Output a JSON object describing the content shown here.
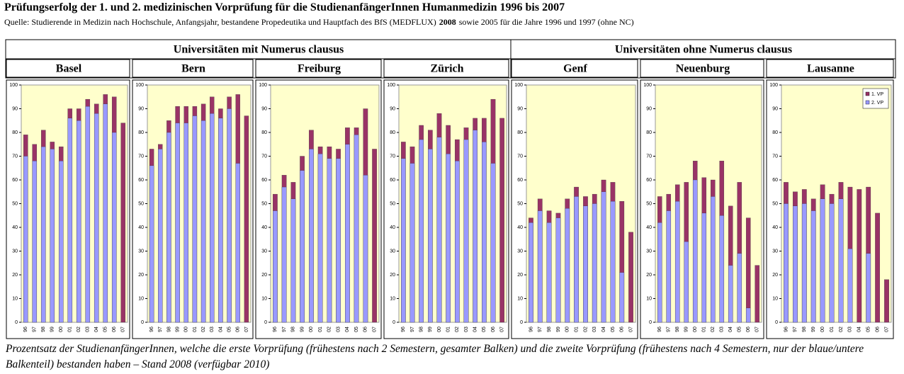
{
  "header": {
    "title": "Prüfungserfolg der 1. und 2. medizinischen Vorprüfung für die StudienanfängerInnen Humanmedizin 1996 bis 2007",
    "source": {
      "before": "Quelle: Studierende in Medizin nach Hochschule, Anfangsjahr, bestandene Propedeutika und Hauptfach des BfS (MEDFLUX)",
      "bold": "2008",
      "after": "sowie 2005 für die Jahre 1996 und 1997 (ohne NC)"
    }
  },
  "table": {
    "groups": [
      "Universitäten mit Numerus clausus",
      "Universitäten ohne Numerus clausus"
    ]
  },
  "chart_data": [
    {
      "type": "bar",
      "title": "Basel",
      "categories": [
        "96",
        "97",
        "98",
        "99",
        "00",
        "01",
        "02",
        "03",
        "04",
        "05",
        "06",
        "07"
      ],
      "series": [
        {
          "color": "#993366",
          "values": [
            79,
            75,
            81,
            76,
            74,
            90,
            90,
            94,
            92,
            96,
            95,
            84
          ]
        },
        {
          "color": "#9999ff",
          "values": [
            70,
            68,
            74,
            73,
            68,
            86,
            85,
            91,
            88,
            92,
            80,
            null
          ]
        }
      ],
      "ylim": [
        0,
        100
      ],
      "yticks": [
        0,
        10,
        20,
        30,
        40,
        50,
        60,
        70,
        80,
        90,
        100
      ],
      "grid": false
    },
    {
      "type": "bar",
      "title": "Bern",
      "categories": [
        "96",
        "97",
        "98",
        "99",
        "00",
        "01",
        "02",
        "03",
        "04",
        "05",
        "06",
        "07"
      ],
      "series": [
        {
          "color": "#993366",
          "values": [
            73,
            75,
            85,
            91,
            91,
            91,
            92,
            95,
            90,
            95,
            96,
            87
          ]
        },
        {
          "color": "#9999ff",
          "values": [
            66,
            73,
            80,
            84,
            84,
            87,
            85,
            88,
            86,
            90,
            67,
            null
          ]
        }
      ],
      "ylim": [
        0,
        100
      ],
      "yticks": [
        0,
        10,
        20,
        30,
        40,
        50,
        60,
        70,
        80,
        90,
        100
      ],
      "grid": false
    },
    {
      "type": "bar",
      "title": "Freiburg",
      "categories": [
        "96",
        "97",
        "98",
        "99",
        "00",
        "01",
        "02",
        "03",
        "04",
        "05",
        "06",
        "07"
      ],
      "series": [
        {
          "color": "#993366",
          "values": [
            54,
            62,
            59,
            70,
            81,
            74,
            74,
            73,
            82,
            82,
            90,
            73
          ]
        },
        {
          "color": "#9999ff",
          "values": [
            47,
            57,
            52,
            64,
            73,
            71,
            69,
            69,
            75,
            79,
            62,
            null
          ]
        }
      ],
      "ylim": [
        0,
        100
      ],
      "yticks": [
        0,
        10,
        20,
        30,
        40,
        50,
        60,
        70,
        80,
        90,
        100
      ],
      "grid": false
    },
    {
      "type": "bar",
      "title": "Zürich",
      "categories": [
        "96",
        "97",
        "98",
        "99",
        "00",
        "01",
        "02",
        "03",
        "04",
        "05",
        "06",
        "07"
      ],
      "series": [
        {
          "color": "#993366",
          "values": [
            76,
            74,
            83,
            81,
            88,
            83,
            77,
            82,
            86,
            86,
            94,
            86
          ]
        },
        {
          "color": "#9999ff",
          "values": [
            69,
            67,
            77,
            73,
            78,
            71,
            68,
            77,
            81,
            76,
            67,
            null
          ]
        }
      ],
      "ylim": [
        0,
        100
      ],
      "yticks": [
        0,
        10,
        20,
        30,
        40,
        50,
        60,
        70,
        80,
        90,
        100
      ],
      "grid": false
    },
    {
      "type": "bar",
      "title": "Genf",
      "categories": [
        "96",
        "97",
        "98",
        "99",
        "00",
        "01",
        "02",
        "03",
        "04",
        "05",
        "06",
        "07"
      ],
      "series": [
        {
          "color": "#993366",
          "values": [
            44,
            52,
            47,
            46,
            52,
            57,
            53,
            54,
            60,
            59,
            51,
            38
          ]
        },
        {
          "color": "#9999ff",
          "values": [
            42,
            47,
            42,
            44,
            48,
            53,
            49,
            50,
            55,
            51,
            21,
            null
          ]
        }
      ],
      "ylim": [
        0,
        100
      ],
      "yticks": [
        0,
        10,
        20,
        30,
        40,
        50,
        60,
        70,
        80,
        90,
        100
      ],
      "grid": false
    },
    {
      "type": "bar",
      "title": "Neuenburg",
      "categories": [
        "96",
        "97",
        "98",
        "99",
        "00",
        "01",
        "02",
        "03",
        "04",
        "05",
        "06",
        "07"
      ],
      "series": [
        {
          "color": "#993366",
          "values": [
            53,
            54,
            58,
            59,
            68,
            61,
            60,
            68,
            49,
            59,
            44,
            24
          ]
        },
        {
          "color": "#9999ff",
          "values": [
            42,
            47,
            51,
            34,
            60,
            46,
            53,
            45,
            24,
            29,
            6,
            null
          ]
        }
      ],
      "ylim": [
        0,
        100
      ],
      "yticks": [
        0,
        10,
        20,
        30,
        40,
        50,
        60,
        70,
        80,
        90,
        100
      ],
      "grid": false
    },
    {
      "type": "bar",
      "title": "Lausanne",
      "categories": [
        "96",
        "97",
        "98",
        "99",
        "00",
        "01",
        "02",
        "03",
        "04",
        "05",
        "06",
        "07"
      ],
      "series": [
        {
          "name": "1. VP",
          "color": "#993366",
          "values": [
            59,
            55,
            56,
            52,
            58,
            54,
            59,
            57,
            56,
            57,
            46,
            18
          ]
        },
        {
          "name": "2. VP",
          "color": "#9999ff",
          "values": [
            50,
            49,
            50,
            47,
            52,
            50,
            52,
            31,
            null,
            29,
            null,
            null
          ]
        }
      ],
      "ylim": [
        0,
        100
      ],
      "yticks": [
        0,
        10,
        20,
        30,
        40,
        50,
        60,
        70,
        80,
        90,
        100
      ],
      "grid": false,
      "legend": "upper right"
    }
  ],
  "caption": "Prozentsatz der StudienanfängerInnen, welche die erste Vorprüfung (frühestens nach 2 Semestern, gesamter Balken) und die zweite Vorprüfung (frühestens nach 4 Semestern, nur der blaue/untere Balkenteil) bestanden haben – Stand 2008 (verfügbar 2010)"
}
